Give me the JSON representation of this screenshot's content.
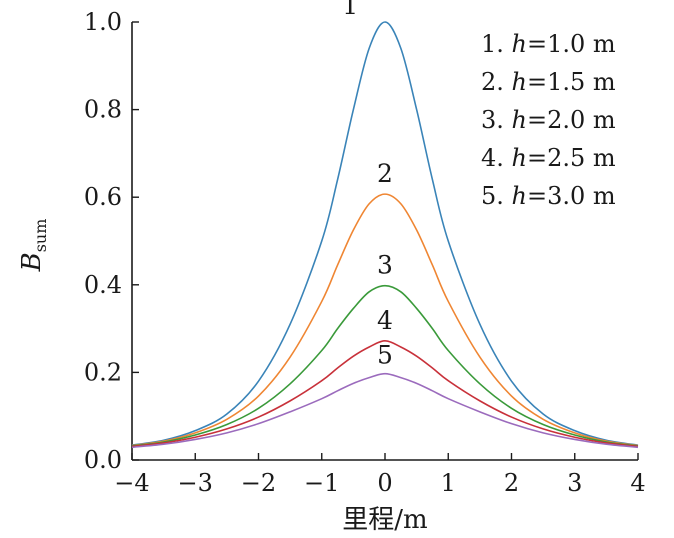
{
  "chart_data": {
    "type": "line",
    "xlabel": "里程/m",
    "ylabel": "B",
    "ylabel_sub": "sum",
    "xlim": [
      -4,
      4
    ],
    "ylim": [
      0,
      1.0
    ],
    "xticks": [
      "−4",
      "−3",
      "−2",
      "−1",
      "0",
      "1",
      "2",
      "3",
      "4"
    ],
    "xtick_values": [
      -4,
      -3,
      -2,
      -1,
      0,
      1,
      2,
      3,
      4
    ],
    "yticks": [
      "0.0",
      "0.2",
      "0.4",
      "0.6",
      "0.8",
      "1.0"
    ],
    "ytick_values": [
      0,
      0.2,
      0.4,
      0.6,
      0.8,
      1.0
    ],
    "grid": false,
    "legend_position": "top-right",
    "x": [
      -4,
      -3.5,
      -3,
      -2.5,
      -2,
      -1.5,
      -1,
      -0.75,
      -0.5,
      -0.25,
      0,
      0.25,
      0.5,
      0.75,
      1,
      1.5,
      2,
      2.5,
      3,
      3.5,
      4
    ],
    "series": [
      {
        "name": "1",
        "legend_prefix": "1. ",
        "legend_var": "h",
        "legend_value": "=1.0 m",
        "color": "#3a84b8",
        "values": [
          0.034,
          0.045,
          0.067,
          0.105,
          0.18,
          0.31,
          0.5,
          0.64,
          0.8,
          0.94,
          1.0,
          0.94,
          0.8,
          0.64,
          0.5,
          0.31,
          0.18,
          0.105,
          0.067,
          0.045,
          0.034
        ]
      },
      {
        "name": "2",
        "legend_prefix": "2. ",
        "legend_var": "h",
        "legend_value": "=1.5 m",
        "color": "#ef8633",
        "values": [
          0.033,
          0.043,
          0.062,
          0.093,
          0.146,
          0.235,
          0.362,
          0.445,
          0.525,
          0.585,
          0.607,
          0.585,
          0.525,
          0.445,
          0.362,
          0.235,
          0.146,
          0.093,
          0.062,
          0.043,
          0.033
        ]
      },
      {
        "name": "3",
        "legend_prefix": "3. ",
        "legend_var": "h",
        "legend_value": "=2.0 m",
        "color": "#3a9a3a",
        "values": [
          0.032,
          0.041,
          0.057,
          0.081,
          0.118,
          0.174,
          0.25,
          0.3,
          0.346,
          0.384,
          0.398,
          0.384,
          0.346,
          0.3,
          0.25,
          0.174,
          0.118,
          0.081,
          0.057,
          0.041,
          0.032
        ]
      },
      {
        "name": "4",
        "legend_prefix": "4. ",
        "legend_var": "h",
        "legend_value": "=2.5 m",
        "color": "#c8313a",
        "values": [
          0.031,
          0.039,
          0.052,
          0.071,
          0.098,
          0.135,
          0.181,
          0.21,
          0.237,
          0.258,
          0.272,
          0.258,
          0.237,
          0.21,
          0.181,
          0.135,
          0.098,
          0.071,
          0.052,
          0.039,
          0.031
        ]
      },
      {
        "name": "5",
        "legend_prefix": "5. ",
        "legend_var": "h",
        "legend_value": "=3.0 m",
        "color": "#9b6bbd",
        "values": [
          0.029,
          0.036,
          0.047,
          0.062,
          0.083,
          0.11,
          0.14,
          0.158,
          0.175,
          0.188,
          0.197,
          0.188,
          0.175,
          0.158,
          0.14,
          0.11,
          0.083,
          0.062,
          0.047,
          0.036,
          0.029
        ]
      }
    ]
  }
}
